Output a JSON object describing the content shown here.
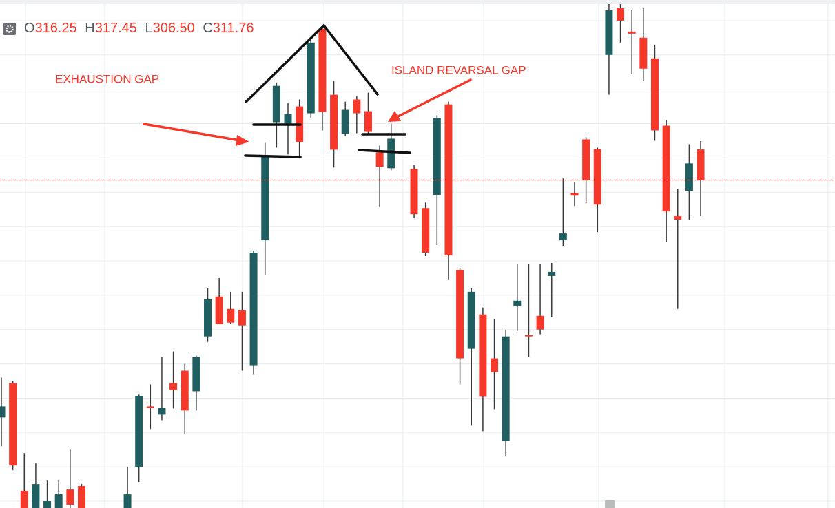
{
  "chart_data": {
    "type": "candlestick",
    "header": {
      "labels": [
        "O",
        "H",
        "L",
        "C"
      ],
      "values": [
        316.25,
        317.45,
        306.5,
        311.76
      ],
      "value_labels": [
        "316.25",
        "317.45",
        "306.50",
        "311.76"
      ]
    },
    "annotations": [
      "EXHAUSTION GAP",
      "ISLAND REVARSAL GAP"
    ],
    "open": [
      277.2,
      282.2,
      266.5,
      263.5,
      263.5,
      263.8,
      266.7,
      267.2,
      null,
      null,
      null,
      263.5,
      270.0,
      278.8,
      277.6,
      282.2,
      284.0,
      281.0,
      289.0,
      294.8,
      293.0,
      292.8,
      284.8,
      303.0,
      320.2,
      320.0,
      322.5,
      321.5,
      333.8,
      324.2,
      318.5,
      323.5,
      321.8,
      315.8,
      313.5,
      null,
      313.4,
      307.7,
      309.6,
      322.8,
      298.7,
      287.2,
      292.2,
      285.8,
      273.8,
      293.4,
      289.2,
      292.0,
      297.8,
      303.0,
      309.9,
      317.7,
      316.3,
      330.0,
      336.8,
      333.4,
      332.5,
      329.5,
      319.7,
      306.5,
      310.2,
      316.25
    ],
    "high": [
      283.0,
      282.5,
      272.0,
      270.5,
      268.0,
      268.0,
      272.5,
      267.5,
      null,
      null,
      null,
      270.0,
      280.5,
      282.0,
      286.0,
      286.8,
      285.0,
      286.2,
      296.0,
      297.5,
      295.5,
      295.5,
      301.5,
      317.2,
      326.0,
      323.0,
      323.5,
      332.5,
      334.0,
      326.2,
      323.2,
      324.0,
      324.5,
      316.8,
      320.0,
      null,
      314.0,
      308.5,
      321.2,
      323.2,
      299.0,
      296.0,
      293.2,
      291.5,
      290.0,
      299.5,
      299.5,
      299.5,
      299.7,
      312.0,
      311.5,
      318.0,
      316.5,
      337.5,
      337.5,
      336.5,
      336.8,
      331.5,
      320.5,
      310.5,
      317.0,
      317.45
    ],
    "low": [
      273.0,
      269.5,
      263.0,
      263.0,
      263.0,
      263.5,
      263.5,
      263.0,
      null,
      null,
      null,
      263.0,
      267.8,
      275.5,
      276.8,
      278.5,
      274.8,
      278.2,
      288.2,
      290.8,
      290.8,
      284.0,
      283.4,
      298.0,
      316.5,
      315.5,
      315.2,
      320.8,
      319.0,
      313.6,
      318.2,
      318.6,
      318.6,
      307.8,
      313.2,
      null,
      306.2,
      300.7,
      302.3,
      297.2,
      282.0,
      276.0,
      275.2,
      278.4,
      271.5,
      289.8,
      286.0,
      289.3,
      291.8,
      302.2,
      308.0,
      308.4,
      304.2,
      324.2,
      331.8,
      327.2,
      326.2,
      317.5,
      302.8,
      293.0,
      306.0,
      306.5
    ],
    "close": [
      278.8,
      270.2,
      263.5,
      267.5,
      265.0,
      266.0,
      264.5,
      263.5,
      null,
      null,
      null,
      266.0,
      280.3,
      278.6,
      278.6,
      281.2,
      278.2,
      286.0,
      294.4,
      290.8,
      291.0,
      290.6,
      301.2,
      315.2,
      325.5,
      321.4,
      317.3,
      331.8,
      321.7,
      316.2,
      322.0,
      321.5,
      318.8,
      313.7,
      317.8,
      null,
      306.8,
      301.2,
      320.8,
      300.8,
      285.8,
      295.5,
      280.2,
      283.8,
      289.0,
      294.2,
      289.0,
      290.0,
      298.4,
      304.0,
      309.5,
      311.8,
      308.2,
      336.5,
      335.0,
      333.1,
      328.0,
      319.0,
      307.2,
      306.0,
      314.2,
      311.76
    ],
    "up_color": "#1f5f61",
    "down_color": "#f5382a",
    "last_price": 311.76,
    "ylim": [
      264,
      338
    ],
    "yticks": [
      265,
      270,
      275,
      280,
      285,
      290,
      295,
      300,
      305,
      310,
      315,
      320,
      325,
      330,
      335
    ],
    "grid": true
  }
}
